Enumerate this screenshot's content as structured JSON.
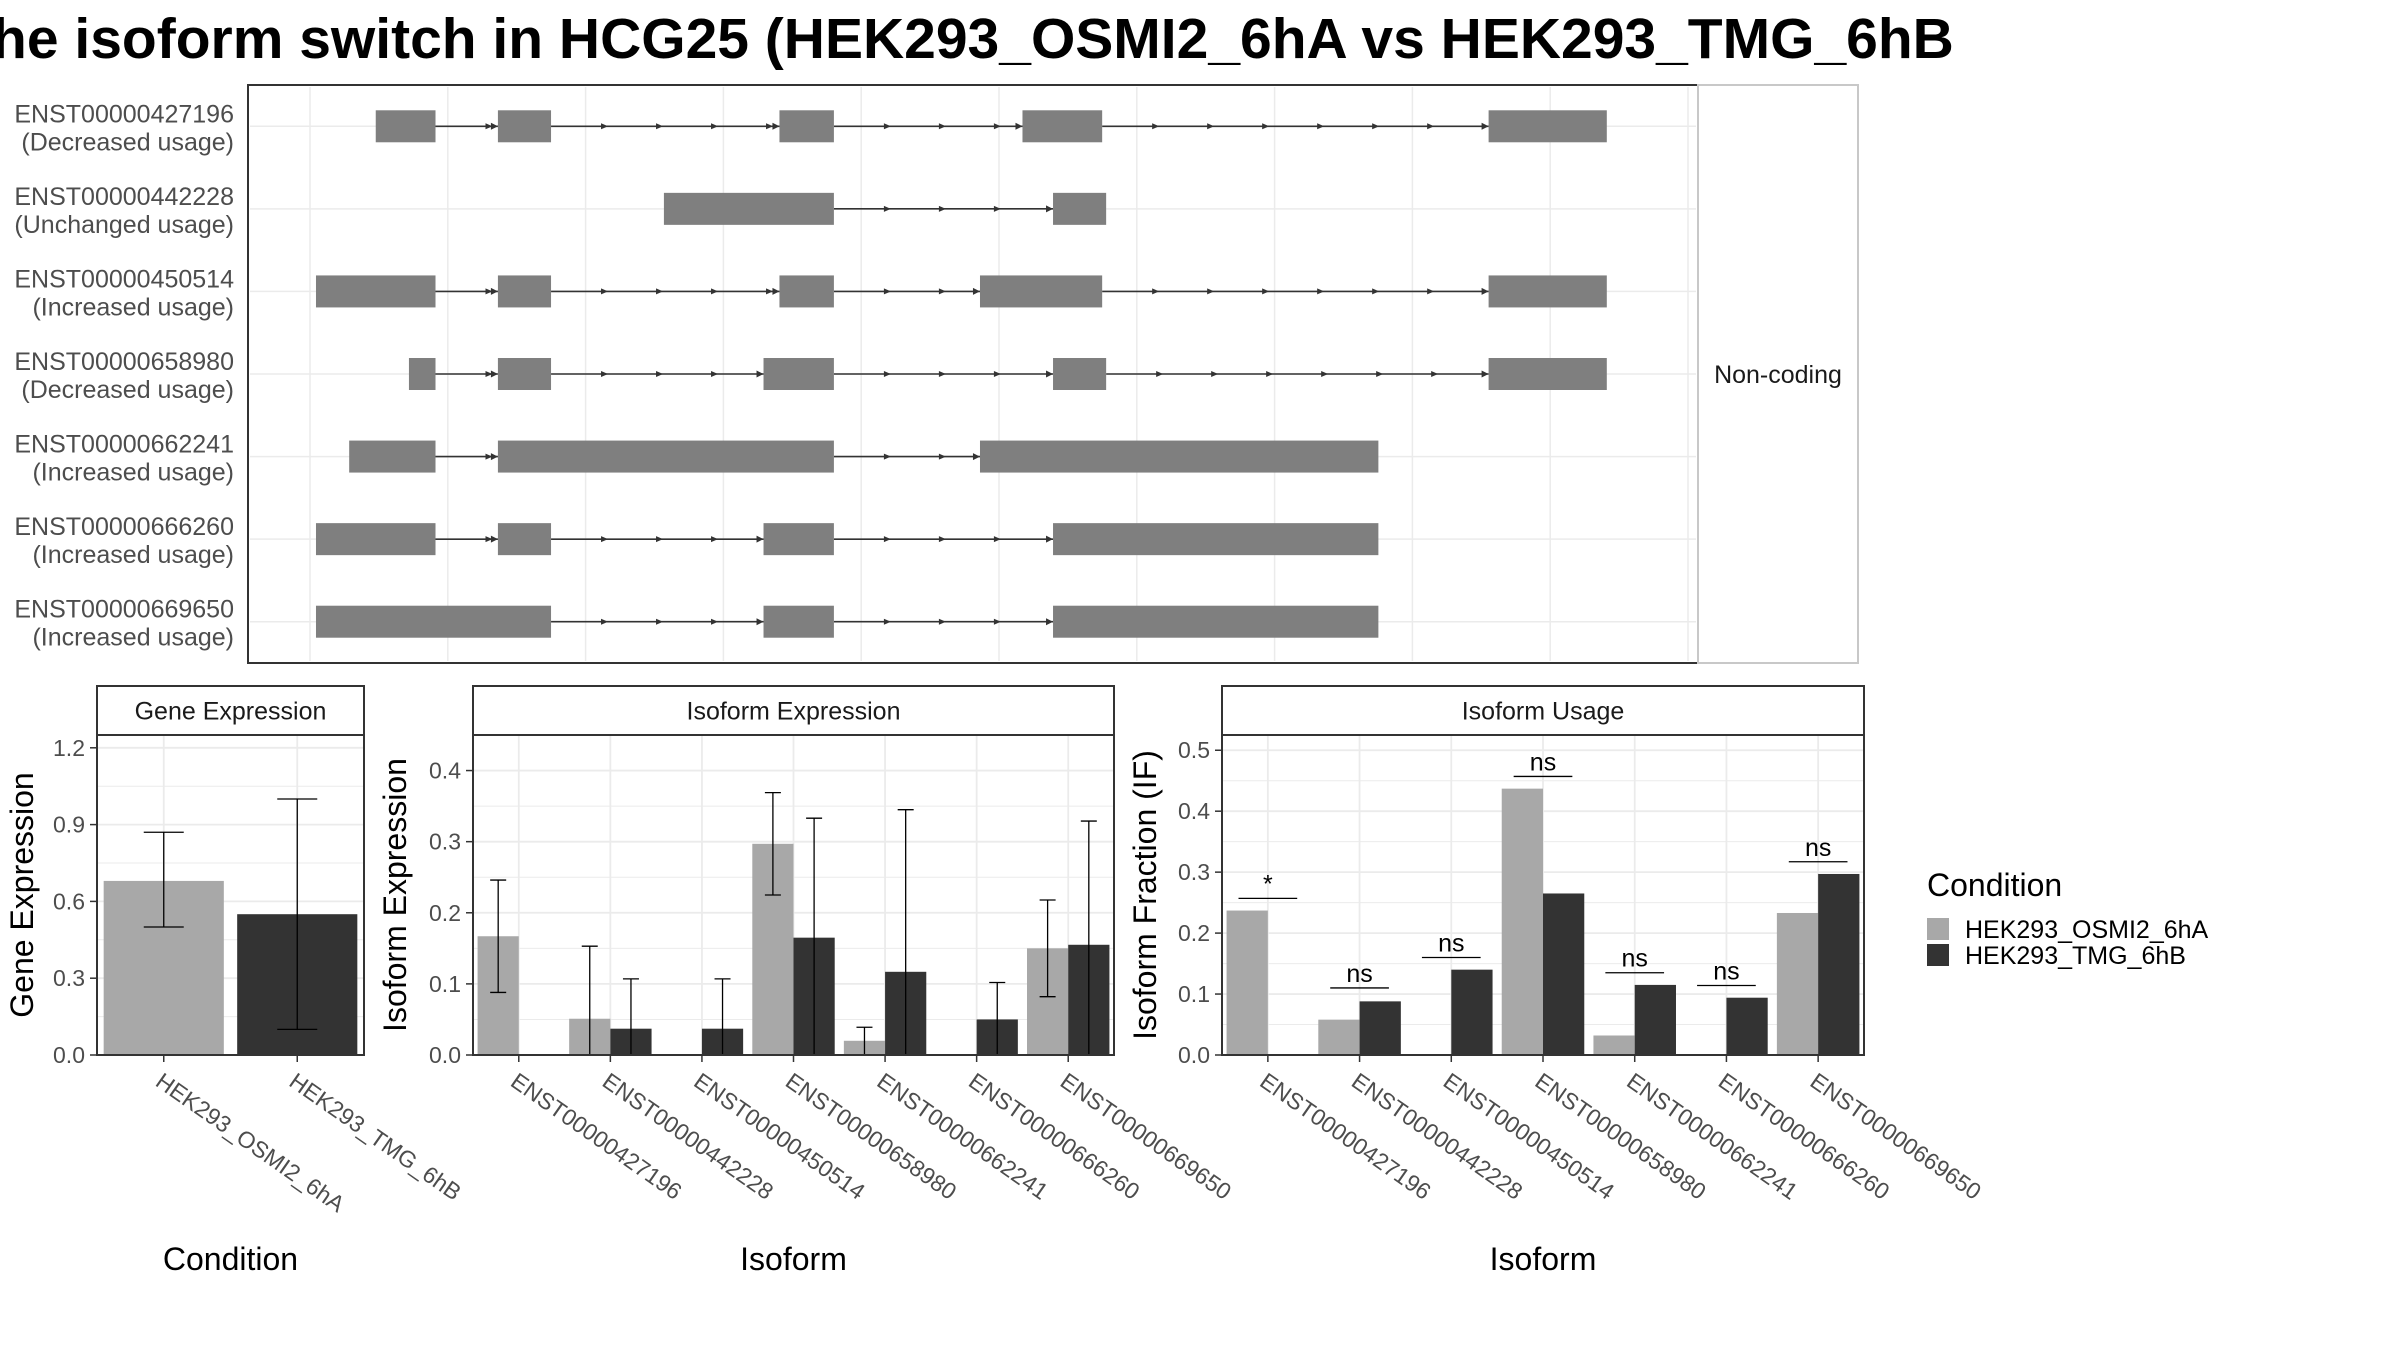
{
  "title": "he isoform switch in HCG25 (HEK293_OSMI2_6hA vs HEK293_TMG_6hB",
  "colors": {
    "exon": "#7f7f7f",
    "intron": "#333333",
    "cond_a": "#a8a8a8",
    "cond_b": "#333333",
    "grid": "#ebebeb",
    "panel_border": "#333333",
    "strip_bg": "#ffffff"
  },
  "transcript_panel": {
    "facet_label": "Non-coding",
    "x_domain": [
      0,
      1000
    ],
    "transcripts": [
      {
        "id": "ENST00000427196",
        "usage": "(Decreased usage)",
        "exons": [
          [
            48,
            93
          ],
          [
            140,
            180
          ],
          [
            352,
            393
          ],
          [
            535,
            595
          ],
          [
            886,
            975
          ]
        ]
      },
      {
        "id": "ENST00000442228",
        "usage": "(Unchanged usage)",
        "exons": [
          [
            265,
            393
          ],
          [
            558,
            598
          ]
        ]
      },
      {
        "id": "ENST00000450514",
        "usage": "(Increased usage)",
        "exons": [
          [
            3,
            93
          ],
          [
            140,
            180
          ],
          [
            352,
            393
          ],
          [
            503,
            595
          ],
          [
            886,
            975
          ]
        ]
      },
      {
        "id": "ENST00000658980",
        "usage": "(Decreased usage)",
        "exons": [
          [
            73,
            93
          ],
          [
            140,
            180
          ],
          [
            340,
            393
          ],
          [
            558,
            598
          ],
          [
            886,
            975
          ]
        ]
      },
      {
        "id": "ENST00000662241",
        "usage": "(Increased usage)",
        "exons": [
          [
            28,
            93
          ],
          [
            140,
            393
          ],
          [
            503,
            803
          ]
        ]
      },
      {
        "id": "ENST00000666260",
        "usage": "(Increased usage)",
        "exons": [
          [
            3,
            93
          ],
          [
            140,
            180
          ],
          [
            340,
            393
          ],
          [
            558,
            803
          ]
        ]
      },
      {
        "id": "ENST00000669650",
        "usage": "(Increased usage)",
        "exons": [
          [
            3,
            180
          ],
          [
            340,
            393
          ],
          [
            558,
            803
          ]
        ]
      }
    ]
  },
  "legend": {
    "title": "Condition",
    "items": [
      "HEK293_OSMI2_6hA",
      "HEK293_TMG_6hB"
    ]
  },
  "chart_data": [
    {
      "type": "bar",
      "title": "Gene Expression",
      "xlabel": "Condition",
      "ylabel": "Gene Expression",
      "ylim": [
        0,
        1.25
      ],
      "yticks": [
        0.0,
        0.3,
        0.6,
        0.9,
        1.2
      ],
      "ytick_labels": [
        "0.0",
        "0.3",
        "0.6",
        "0.9",
        "1.2"
      ],
      "categories": [
        "HEK293_OSMI2_6hA",
        "HEK293_TMG_6hB"
      ],
      "values": [
        0.68,
        0.55
      ],
      "error_low": [
        0.5,
        0.1
      ],
      "error_high": [
        0.87,
        1.0
      ]
    },
    {
      "type": "bar",
      "title": "Isoform Expression",
      "xlabel": "Isoform",
      "ylabel": "Isoform Expression",
      "ylim": [
        0,
        0.45
      ],
      "yticks": [
        0.0,
        0.1,
        0.2,
        0.3,
        0.4
      ],
      "ytick_labels": [
        "0.0",
        "0.1",
        "0.2",
        "0.3",
        "0.4"
      ],
      "categories": [
        "ENST00000427196",
        "ENST00000442228",
        "ENST00000450514",
        "ENST00000658980",
        "ENST00000662241",
        "ENST00000666260",
        "ENST00000669650"
      ],
      "series": [
        {
          "name": "HEK293_OSMI2_6hA",
          "values": [
            0.167,
            0.051,
            0.0,
            0.297,
            0.02,
            0.0,
            0.15
          ],
          "error_low": [
            0.088,
            0.0,
            0.0,
            0.225,
            0.0,
            0.0,
            0.082
          ],
          "error_high": [
            0.246,
            0.153,
            0.0,
            0.369,
            0.039,
            0.0,
            0.218
          ]
        },
        {
          "name": "HEK293_TMG_6hB",
          "values": [
            0.0,
            0.037,
            0.037,
            0.165,
            0.117,
            0.05,
            0.155
          ],
          "error_low": [
            0.0,
            0.0,
            0.0,
            0.0,
            0.0,
            0.0,
            0.0
          ],
          "error_high": [
            0.0,
            0.107,
            0.107,
            0.333,
            0.345,
            0.102,
            0.329
          ]
        }
      ]
    },
    {
      "type": "bar",
      "title": "Isoform Usage",
      "xlabel": "Isoform",
      "ylabel": "Isoform Fraction (IF)",
      "ylim": [
        0,
        0.525
      ],
      "yticks": [
        0.0,
        0.1,
        0.2,
        0.3,
        0.4,
        0.5
      ],
      "ytick_labels": [
        "0.0",
        "0.1",
        "0.2",
        "0.3",
        "0.4",
        "0.5"
      ],
      "categories": [
        "ENST00000427196",
        "ENST00000442228",
        "ENST00000450514",
        "ENST00000658980",
        "ENST00000662241",
        "ENST00000666260",
        "ENST00000669650"
      ],
      "series": [
        {
          "name": "HEK293_OSMI2_6hA",
          "values": [
            0.237,
            0.058,
            0.0,
            0.437,
            0.032,
            0.0,
            0.233
          ]
        },
        {
          "name": "HEK293_TMG_6hB",
          "values": [
            0.0,
            0.088,
            0.14,
            0.265,
            0.115,
            0.094,
            0.297
          ]
        }
      ],
      "significance": [
        "*",
        "ns",
        "ns",
        "ns",
        "ns",
        "ns",
        "ns"
      ],
      "sig_y": [
        0.257,
        0.11,
        0.16,
        0.457,
        0.135,
        0.114,
        0.317
      ]
    }
  ]
}
